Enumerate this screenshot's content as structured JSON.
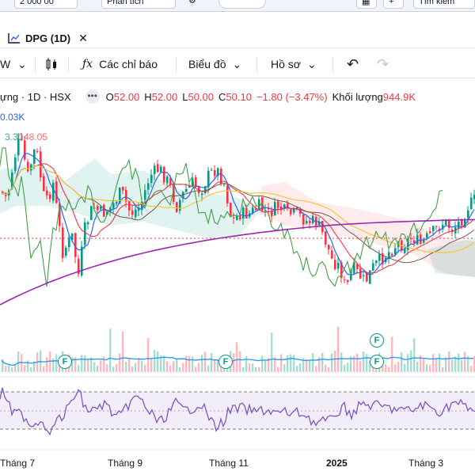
{
  "topbar": {
    "item1": "2 000 00",
    "item2": "Phân tích",
    "item3": "Tìm kiếm"
  },
  "tab": {
    "label": "DPG (1D)",
    "close_icon": "close-icon"
  },
  "toolbar": {
    "interval_tail": "W",
    "indicators_label": "Các chỉ báo",
    "charts_label": "Biểu đồ",
    "profile_label": "Hồ sơ"
  },
  "legend": {
    "symbol_fragment": "ựng · 1D · HSX",
    "o_label": "O",
    "o_value": "52.00",
    "h_label": "H",
    "h_value": "52.00",
    "l_label": "L",
    "l_value": "50.00",
    "c_label": "C",
    "c_value": "50.10",
    "change": "−1.80 (−3.47%)",
    "volume_label": "Khối lượng",
    "volume_value": "944.9K"
  },
  "indicator_values": {
    "line1": "0.03K",
    "line2a": "3.30",
    "line2b": "48.05"
  },
  "x_axis": [
    "Tháng 7",
    "Tháng 9",
    "Tháng 11",
    "2025",
    "Tháng 3"
  ],
  "events": [
    "F",
    "F",
    "F",
    "F"
  ],
  "colors": {
    "up": "#089981",
    "down": "#f23645",
    "accent": "#2962ff",
    "ma_purple": "#9c27b0",
    "rsi": "#7e57c2"
  },
  "chart_data": {
    "type": "candlestick",
    "symbol": "DPG",
    "interval": "1D",
    "exchange": "HSX",
    "last": {
      "open": 52.0,
      "high": 52.0,
      "low": 50.0,
      "close": 50.1,
      "change": -1.8,
      "change_pct": -3.47,
      "volume": "944.9K"
    },
    "close_path_approx": [
      [
        0,
        46
      ],
      [
        8,
        45
      ],
      [
        16,
        50
      ],
      [
        24,
        53
      ],
      [
        34,
        48
      ],
      [
        44,
        52
      ],
      [
        56,
        44
      ],
      [
        66,
        47
      ],
      [
        78,
        38
      ],
      [
        90,
        40
      ],
      [
        98,
        35
      ],
      [
        106,
        41
      ],
      [
        116,
        44
      ],
      [
        128,
        43
      ],
      [
        140,
        44
      ],
      [
        152,
        46
      ],
      [
        164,
        43
      ],
      [
        176,
        44
      ],
      [
        188,
        48
      ],
      [
        200,
        49
      ],
      [
        212,
        47
      ],
      [
        222,
        44
      ],
      [
        232,
        46
      ],
      [
        242,
        47
      ],
      [
        252,
        46
      ],
      [
        262,
        48
      ],
      [
        272,
        49
      ],
      [
        282,
        47
      ],
      [
        292,
        42
      ],
      [
        302,
        43
      ],
      [
        314,
        43
      ],
      [
        326,
        44
      ],
      [
        338,
        43
      ],
      [
        350,
        44
      ],
      [
        362,
        43
      ],
      [
        374,
        43
      ],
      [
        386,
        42
      ],
      [
        398,
        42
      ],
      [
        408,
        40
      ],
      [
        418,
        37
      ],
      [
        428,
        36
      ],
      [
        436,
        33
      ],
      [
        444,
        36
      ],
      [
        452,
        35
      ],
      [
        460,
        34
      ],
      [
        470,
        36
      ],
      [
        480,
        37
      ],
      [
        490,
        38
      ],
      [
        500,
        39
      ],
      [
        510,
        39
      ],
      [
        520,
        40
      ],
      [
        530,
        39
      ],
      [
        540,
        40
      ],
      [
        550,
        41
      ],
      [
        560,
        42
      ],
      [
        570,
        41
      ],
      [
        580,
        42
      ],
      [
        590,
        44
      ],
      [
        600,
        45
      ]
    ],
    "series": [
      {
        "name": "Ichimoku"
      },
      {
        "name": "MA"
      },
      {
        "name": "Khối lượng"
      },
      {
        "name": "RSI"
      }
    ],
    "x_ticks": [
      "Tháng 7",
      "Tháng 9",
      "Tháng 11",
      "2025",
      "Tháng 3"
    ]
  }
}
